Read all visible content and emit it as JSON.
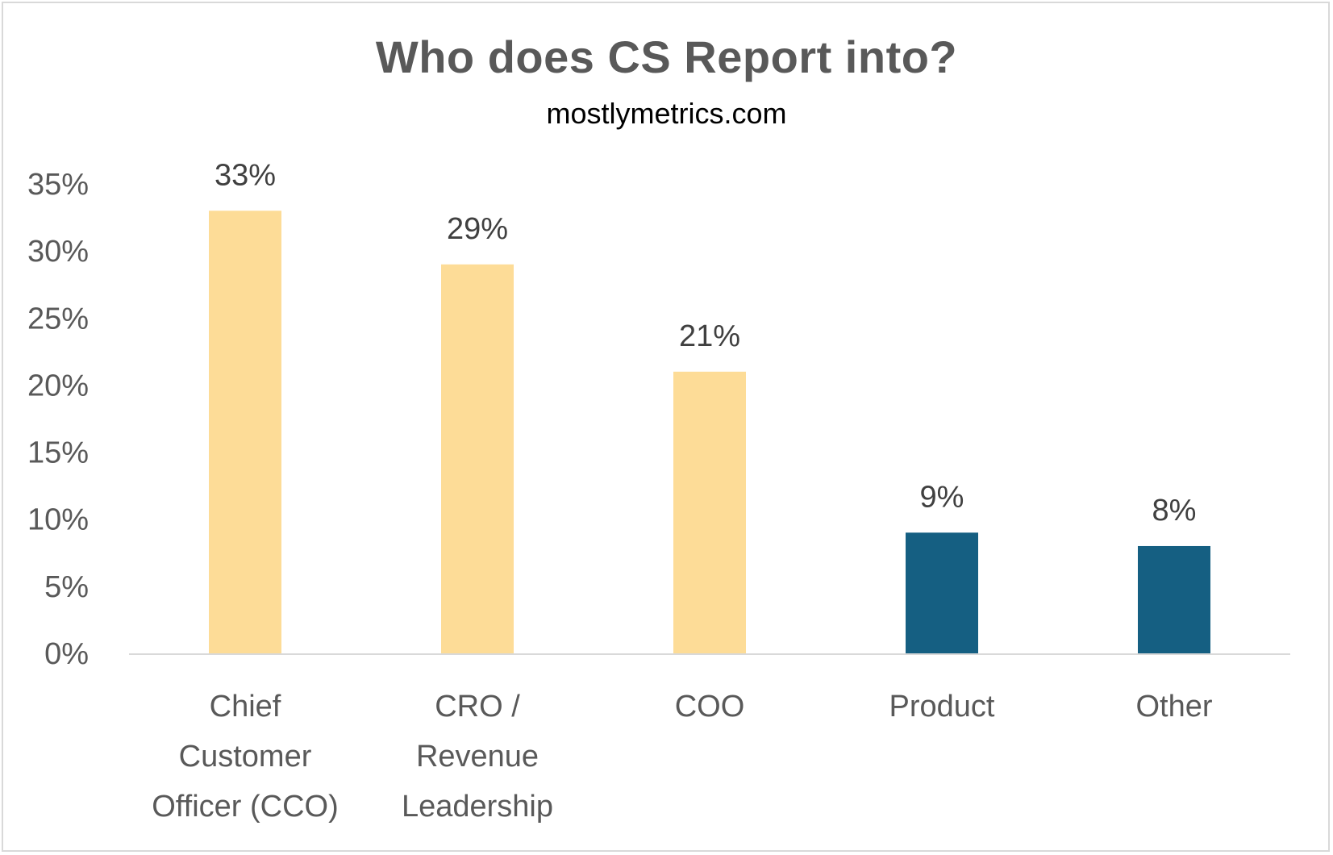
{
  "chart_data": {
    "type": "bar",
    "title": "Who does CS Report into?",
    "subtitle": "mostlymetrics.com",
    "categories": [
      [
        "Chief",
        "Customer",
        "Officer (CCO)"
      ],
      [
        "CRO /",
        "Revenue",
        "Leadership"
      ],
      [
        "COO"
      ],
      [
        "Product"
      ],
      [
        "Other"
      ]
    ],
    "values": [
      33,
      29,
      21,
      9,
      8
    ],
    "data_labels": [
      "33%",
      "29%",
      "21%",
      "9%",
      "8%"
    ],
    "bar_colors": [
      "#fddc97",
      "#fddc97",
      "#fddc97",
      "#155f82",
      "#155f82"
    ],
    "ylim": [
      0,
      35
    ],
    "yticks": [
      0,
      5,
      10,
      15,
      20,
      25,
      30,
      35
    ],
    "ytick_labels": [
      "0%",
      "5%",
      "10%",
      "15%",
      "20%",
      "25%",
      "30%",
      "35%"
    ],
    "grid": false,
    "legend": "none"
  }
}
